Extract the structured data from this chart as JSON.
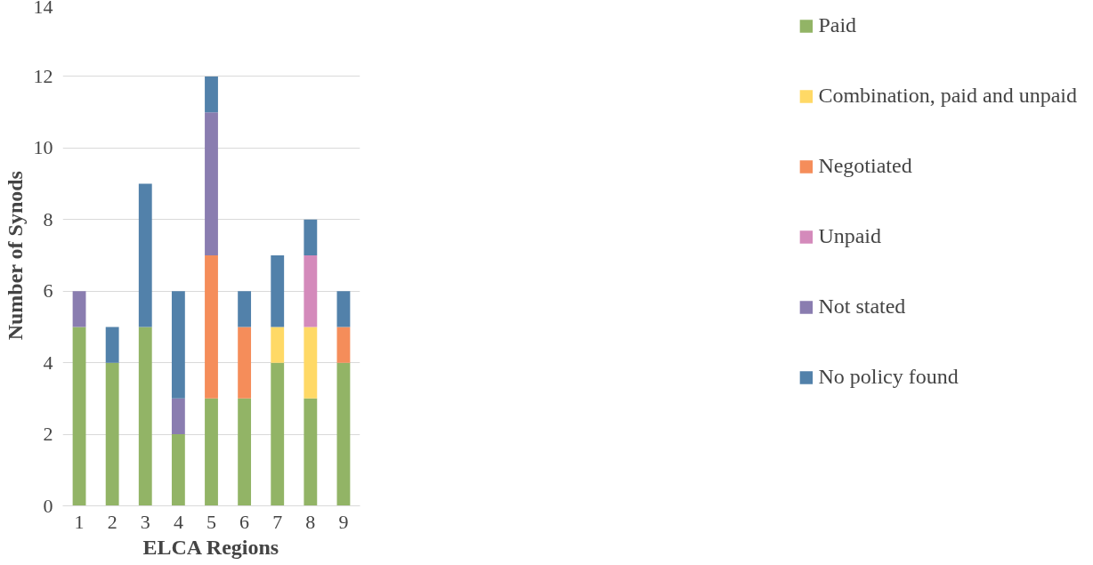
{
  "chart_data": {
    "type": "bar",
    "stacked": true,
    "xlabel": "ELCA Regions",
    "ylabel": "Number of Synods",
    "categories": [
      "1",
      "2",
      "3",
      "4",
      "5",
      "6",
      "7",
      "8",
      "9"
    ],
    "series": [
      {
        "name": "Paid",
        "color": "#92b466",
        "values": [
          5,
          4,
          5,
          2,
          3,
          3,
          4,
          3,
          4
        ]
      },
      {
        "name": "Combination, paid and unpaid",
        "color": "#ffd966",
        "values": [
          0,
          0,
          0,
          0,
          0,
          0,
          1,
          2,
          0
        ]
      },
      {
        "name": "Negotiated",
        "color": "#f58d5a",
        "values": [
          0,
          0,
          0,
          0,
          4,
          2,
          0,
          0,
          1
        ]
      },
      {
        "name": "Unpaid",
        "color": "#d48abb",
        "values": [
          0,
          0,
          0,
          0,
          0,
          0,
          0,
          2,
          0
        ]
      },
      {
        "name": "Not stated",
        "color": "#8a7db0",
        "values": [
          1,
          0,
          0,
          1,
          4,
          0,
          0,
          0,
          0
        ]
      },
      {
        "name": "No policy found",
        "color": "#5281aa",
        "values": [
          0,
          1,
          4,
          3,
          1,
          1,
          2,
          1,
          1
        ]
      }
    ],
    "ylim": [
      0,
      14
    ],
    "yticks": [
      0,
      2,
      4,
      6,
      8,
      10,
      12,
      14
    ],
    "grid": "y",
    "legend": "right"
  }
}
